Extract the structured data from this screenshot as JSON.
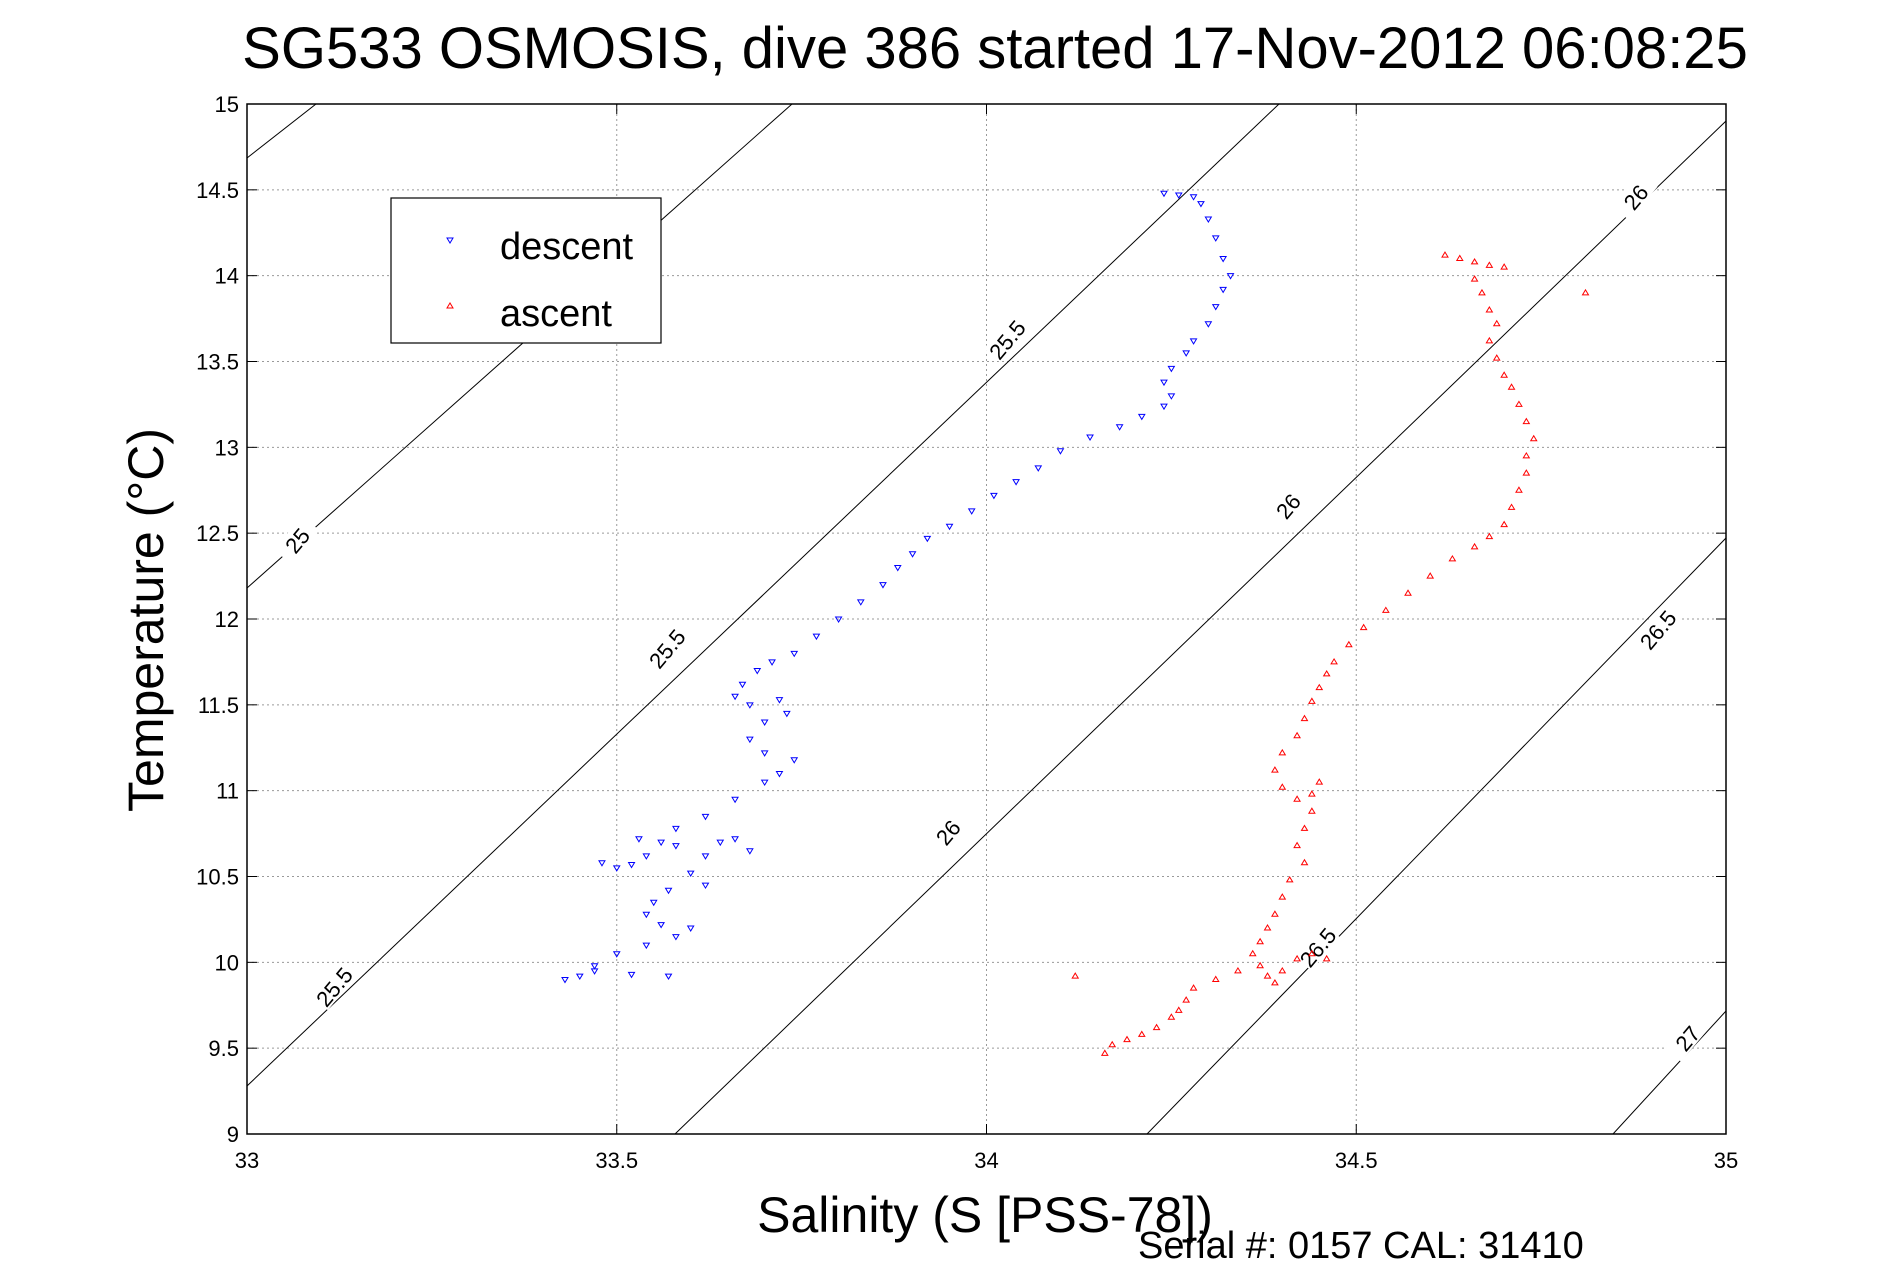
{
  "chart_data": {
    "type": "scatter",
    "title": "SG533 OSMOSIS, dive 386 started 17-Nov-2012 06:08:25",
    "xlabel": "Salinity (S [PSS-78])",
    "ylabel": "Temperature (°C)",
    "xlim": [
      33,
      35
    ],
    "ylim": [
      9,
      15
    ],
    "xticks": [
      "33",
      "33.5",
      "34",
      "34.5",
      "35"
    ],
    "yticks": [
      "9",
      "9.5",
      "10",
      "10.5",
      "11",
      "11.5",
      "12",
      "12.5",
      "13",
      "13.5",
      "14",
      "14.5",
      "15"
    ],
    "grid": true,
    "legend_position": "top-left",
    "footer": "Serial #: 0157  CAL: 31410",
    "series": [
      {
        "name": "descent",
        "marker": "triangle-down",
        "color": "#0000ff",
        "points": [
          [
            34.24,
            14.48
          ],
          [
            34.26,
            14.47
          ],
          [
            34.28,
            14.46
          ],
          [
            34.29,
            14.42
          ],
          [
            34.3,
            14.33
          ],
          [
            34.31,
            14.22
          ],
          [
            34.32,
            14.1
          ],
          [
            34.33,
            14.0
          ],
          [
            34.32,
            13.92
          ],
          [
            34.31,
            13.82
          ],
          [
            34.3,
            13.72
          ],
          [
            34.28,
            13.62
          ],
          [
            34.27,
            13.55
          ],
          [
            34.25,
            13.46
          ],
          [
            34.24,
            13.38
          ],
          [
            34.25,
            13.3
          ],
          [
            34.24,
            13.24
          ],
          [
            34.21,
            13.18
          ],
          [
            34.18,
            13.12
          ],
          [
            34.14,
            13.06
          ],
          [
            34.1,
            12.98
          ],
          [
            34.07,
            12.88
          ],
          [
            34.04,
            12.8
          ],
          [
            34.01,
            12.72
          ],
          [
            33.98,
            12.63
          ],
          [
            33.95,
            12.54
          ],
          [
            33.92,
            12.47
          ],
          [
            33.9,
            12.38
          ],
          [
            33.88,
            12.3
          ],
          [
            33.86,
            12.2
          ],
          [
            33.83,
            12.1
          ],
          [
            33.8,
            12.0
          ],
          [
            33.77,
            11.9
          ],
          [
            33.74,
            11.8
          ],
          [
            33.71,
            11.75
          ],
          [
            33.69,
            11.7
          ],
          [
            33.67,
            11.62
          ],
          [
            33.66,
            11.55
          ],
          [
            33.68,
            11.5
          ],
          [
            33.72,
            11.53
          ],
          [
            33.73,
            11.45
          ],
          [
            33.7,
            11.4
          ],
          [
            33.68,
            11.3
          ],
          [
            33.7,
            11.22
          ],
          [
            33.74,
            11.18
          ],
          [
            33.72,
            11.1
          ],
          [
            33.7,
            11.05
          ],
          [
            33.66,
            10.95
          ],
          [
            33.62,
            10.85
          ],
          [
            33.58,
            10.78
          ],
          [
            33.56,
            10.7
          ],
          [
            33.54,
            10.62
          ],
          [
            33.52,
            10.57
          ],
          [
            33.5,
            10.55
          ],
          [
            33.48,
            10.58
          ],
          [
            33.53,
            10.72
          ],
          [
            33.58,
            10.68
          ],
          [
            33.62,
            10.62
          ],
          [
            33.6,
            10.52
          ],
          [
            33.57,
            10.42
          ],
          [
            33.55,
            10.35
          ],
          [
            33.54,
            10.28
          ],
          [
            33.56,
            10.22
          ],
          [
            33.58,
            10.15
          ],
          [
            33.54,
            10.1
          ],
          [
            33.5,
            10.05
          ],
          [
            33.47,
            9.98
          ],
          [
            33.45,
            9.92
          ],
          [
            33.43,
            9.9
          ],
          [
            33.47,
            9.95
          ],
          [
            33.52,
            9.93
          ],
          [
            33.57,
            9.92
          ],
          [
            33.6,
            10.2
          ],
          [
            33.62,
            10.45
          ],
          [
            33.64,
            10.7
          ],
          [
            33.66,
            10.72
          ],
          [
            33.68,
            10.65
          ]
        ]
      },
      {
        "name": "ascent",
        "marker": "triangle-up",
        "color": "#ff0000",
        "points": [
          [
            34.62,
            14.12
          ],
          [
            34.64,
            14.1
          ],
          [
            34.66,
            14.08
          ],
          [
            34.68,
            14.06
          ],
          [
            34.7,
            14.05
          ],
          [
            34.66,
            13.98
          ],
          [
            34.67,
            13.9
          ],
          [
            34.68,
            13.8
          ],
          [
            34.69,
            13.72
          ],
          [
            34.68,
            13.62
          ],
          [
            34.69,
            13.52
          ],
          [
            34.7,
            13.42
          ],
          [
            34.71,
            13.35
          ],
          [
            34.72,
            13.25
          ],
          [
            34.73,
            13.15
          ],
          [
            34.74,
            13.05
          ],
          [
            34.73,
            12.95
          ],
          [
            34.73,
            12.85
          ],
          [
            34.72,
            12.75
          ],
          [
            34.71,
            12.65
          ],
          [
            34.7,
            12.55
          ],
          [
            34.68,
            12.48
          ],
          [
            34.66,
            12.42
          ],
          [
            34.63,
            12.35
          ],
          [
            34.6,
            12.25
          ],
          [
            34.57,
            12.15
          ],
          [
            34.54,
            12.05
          ],
          [
            34.51,
            11.95
          ],
          [
            34.49,
            11.85
          ],
          [
            34.47,
            11.75
          ],
          [
            34.46,
            11.68
          ],
          [
            34.45,
            11.6
          ],
          [
            34.44,
            11.52
          ],
          [
            34.43,
            11.42
          ],
          [
            34.42,
            11.32
          ],
          [
            34.4,
            11.22
          ],
          [
            34.39,
            11.12
          ],
          [
            34.4,
            11.02
          ],
          [
            34.42,
            10.95
          ],
          [
            34.44,
            10.98
          ],
          [
            34.45,
            11.05
          ],
          [
            34.44,
            10.88
          ],
          [
            34.43,
            10.78
          ],
          [
            34.42,
            10.68
          ],
          [
            34.43,
            10.58
          ],
          [
            34.41,
            10.48
          ],
          [
            34.4,
            10.38
          ],
          [
            34.39,
            10.28
          ],
          [
            34.38,
            10.2
          ],
          [
            34.37,
            10.12
          ],
          [
            34.36,
            10.05
          ],
          [
            34.37,
            9.98
          ],
          [
            34.38,
            9.92
          ],
          [
            34.39,
            9.88
          ],
          [
            34.4,
            9.95
          ],
          [
            34.42,
            10.02
          ],
          [
            34.44,
            10.05
          ],
          [
            34.46,
            10.02
          ],
          [
            34.34,
            9.95
          ],
          [
            34.31,
            9.9
          ],
          [
            34.28,
            9.85
          ],
          [
            34.27,
            9.78
          ],
          [
            34.26,
            9.72
          ],
          [
            34.25,
            9.68
          ],
          [
            34.23,
            9.62
          ],
          [
            34.21,
            9.58
          ],
          [
            34.19,
            9.55
          ],
          [
            34.17,
            9.52
          ],
          [
            34.16,
            9.47
          ],
          [
            34.12,
            9.92
          ],
          [
            34.81,
            13.9
          ]
        ]
      }
    ],
    "contour_labels": [
      {
        "text": "25",
        "x": 33.07,
        "y": 12.45,
        "angle": -50
      },
      {
        "text": "25.5",
        "x": 33.12,
        "y": 9.85,
        "angle": -50
      },
      {
        "text": "25.5",
        "x": 33.57,
        "y": 11.82,
        "angle": -50
      },
      {
        "text": "25.5",
        "x": 34.03,
        "y": 13.62,
        "angle": -50
      },
      {
        "text": "26",
        "x": 33.95,
        "y": 10.75,
        "angle": -50
      },
      {
        "text": "26",
        "x": 34.41,
        "y": 12.65,
        "angle": -50
      },
      {
        "text": "26",
        "x": 34.88,
        "y": 14.45,
        "angle": -50
      },
      {
        "text": "26.5",
        "x": 34.45,
        "y": 10.08,
        "angle": -50
      },
      {
        "text": "26.5",
        "x": 34.91,
        "y": 11.93,
        "angle": -50
      },
      {
        "text": "27",
        "x": 34.95,
        "y": 9.55,
        "angle": -50
      }
    ]
  },
  "colors": {
    "descent": "#0000ff",
    "ascent": "#ff0000",
    "contour": "#000000",
    "grid": "#9a9a9a"
  }
}
